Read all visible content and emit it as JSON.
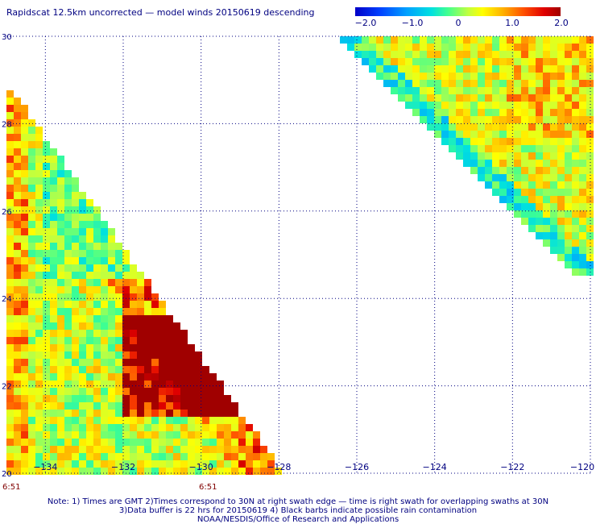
{
  "title": "Rapidscat 12.5km uncorrected — model winds 20150619 descending",
  "colorbar": {
    "labels": [
      "−2.0",
      "−1.0",
      "0",
      "1.0",
      "2.0"
    ],
    "values": [
      -2.0,
      -1.0,
      0,
      1.0,
      2.0
    ],
    "colors": [
      "#0000c8",
      "#00a0ff",
      "#40ff90",
      "#ffff00",
      "#ff5000",
      "#a00000"
    ]
  },
  "map": {
    "lon_labels": [
      "−134",
      "−132",
      "−130",
      "−128",
      "−126",
      "−124",
      "−122",
      "−120"
    ],
    "lon_values": [
      -134,
      -132,
      -130,
      -128,
      -126,
      -124,
      -122,
      -120
    ],
    "lat_labels": [
      "30",
      "28",
      "26",
      "24",
      "22",
      "20"
    ],
    "lat_values": [
      30,
      28,
      26,
      24,
      22,
      20
    ],
    "lon_range": [
      -135,
      -120
    ],
    "lat_range": [
      20,
      30
    ],
    "grid": true
  },
  "time_labels": [
    "6:51",
    "6:51"
  ],
  "notes": {
    "line1": "Note: 1) Times are GMT 2)Times correspond to 30N at right swath edge — time is right swath for overlapping swaths at 30N",
    "line2": "3)Data buffer is 22 hrs for 20150619 4) Black barbs indicate possible rain contamination",
    "line3": "NOAA/NESDIS/Office of Research and Applications"
  }
}
